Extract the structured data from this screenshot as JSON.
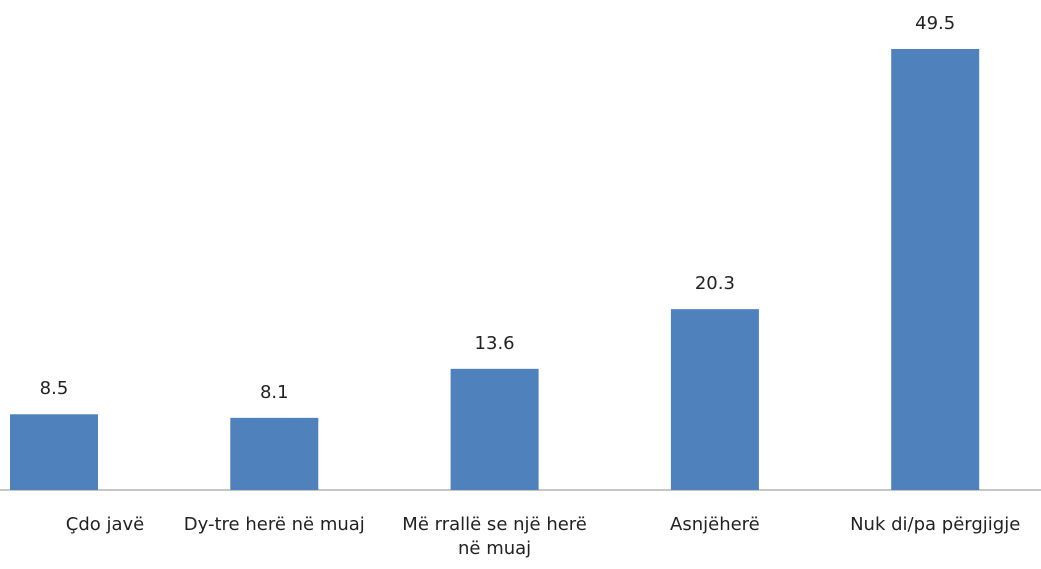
{
  "chart_data": {
    "type": "bar",
    "categories": [
      "Çdo javë",
      "Dy-tre herë në muaj",
      "Më rrallë se një herë në muaj",
      "Asnjëherë",
      "Nuk di/pa përgjigje"
    ],
    "values": [
      8.5,
      8.1,
      13.6,
      20.3,
      49.5
    ],
    "color": "#4f81bd"
  }
}
